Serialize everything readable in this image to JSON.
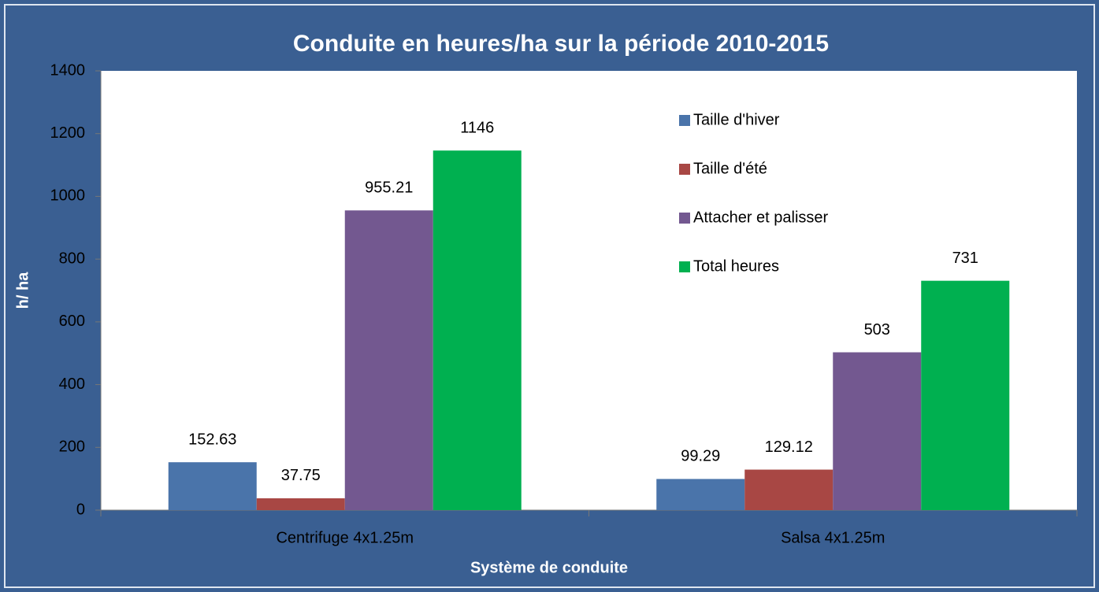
{
  "chart_data": {
    "type": "bar",
    "title": "Conduite en heures/ha sur la période 2010-2015",
    "x_label": "Système de conduite",
    "y_label": "h/ ha",
    "categories": [
      "Centrifuge 4x1.25m",
      "Salsa 4x1.25m"
    ],
    "series": [
      {
        "name": "Taille d'hiver",
        "color": "#4a74aa",
        "values": [
          152.63,
          99.29
        ]
      },
      {
        "name": "Taille d'été",
        "color": "#a84744",
        "values": [
          37.75,
          129.12
        ]
      },
      {
        "name": "Attacher et palisser",
        "color": "#735890",
        "values": [
          955.21,
          503
        ]
      },
      {
        "name": "Total heures",
        "color": "#00b050",
        "values": [
          1146,
          731
        ]
      }
    ],
    "ylim": [
      0,
      1400
    ],
    "yticks": [
      0,
      200,
      400,
      600,
      800,
      1000,
      1200,
      1400
    ],
    "legend": "upper right"
  }
}
